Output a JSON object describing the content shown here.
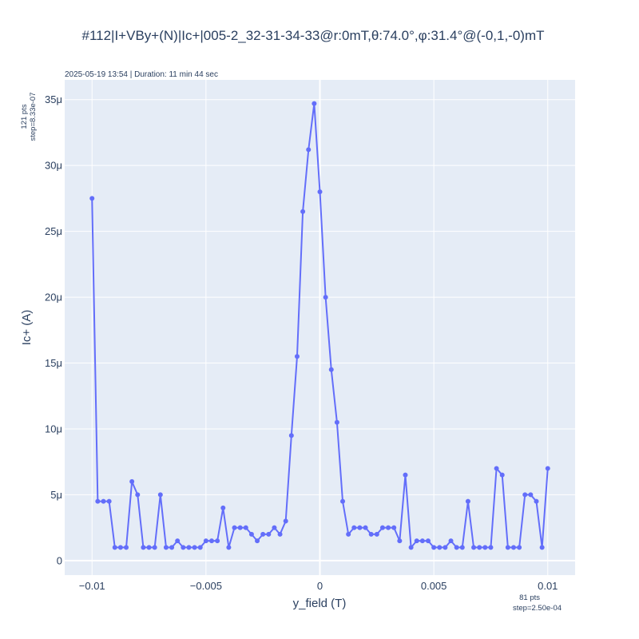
{
  "chart_data": {
    "type": "line",
    "title": "#112|I+VBy+(N)|Ic+|005-2_32-31-34-33@r:0mT,θ:74.0°,φ:31.4°@(-0,1,-0)mT",
    "subtitle": "2025-05-19 13:54 | Duration: 11 min 44 sec",
    "xlabel": "y_field (T)",
    "ylabel": "Ic+ (A)",
    "y_note": [
      "121 pts",
      "step=8.33e-07"
    ],
    "x_note": [
      "81 pts",
      "step=2.50e-04"
    ],
    "xlim": [
      -0.0112,
      0.0112
    ],
    "ylim": [
      -1.1e-06,
      3.65e-05
    ],
    "x_ticks": [
      -0.01,
      -0.005,
      0,
      0.005,
      0.01
    ],
    "x_tick_labels": [
      "−0.01",
      "−0.005",
      "0",
      "0.005",
      "0.01"
    ],
    "y_ticks": [
      0,
      5e-06,
      1e-05,
      1.5e-05,
      2e-05,
      2.5e-05,
      3e-05,
      3.5e-05
    ],
    "y_tick_labels": [
      "0",
      "5μ",
      "10μ",
      "15μ",
      "20μ",
      "25μ",
      "30μ",
      "35μ"
    ],
    "grid": true,
    "colors": {
      "line": "#636efa",
      "plot_bg": "#e5ecf6",
      "grid": "#ffffff"
    },
    "series": [
      {
        "x": [
          -0.01,
          -0.00975,
          -0.0095,
          -0.00925,
          -0.009,
          -0.00875,
          -0.0085,
          -0.00825,
          -0.008,
          -0.00775,
          -0.0075,
          -0.00725,
          -0.007,
          -0.00675,
          -0.0065,
          -0.00625,
          -0.006,
          -0.00575,
          -0.0055,
          -0.00525,
          -0.005,
          -0.00475,
          -0.0045,
          -0.00425,
          -0.004,
          -0.00375,
          -0.0035,
          -0.00325,
          -0.003,
          -0.00275,
          -0.0025,
          -0.00225,
          -0.002,
          -0.00175,
          -0.0015,
          -0.00125,
          -0.001,
          -0.00075,
          -0.0005,
          -0.00025,
          0,
          0.00025,
          0.0005,
          0.00075,
          0.001,
          0.00125,
          0.0015,
          0.00175,
          0.002,
          0.00225,
          0.0025,
          0.00275,
          0.003,
          0.00325,
          0.0035,
          0.00375,
          0.004,
          0.00425,
          0.0045,
          0.00475,
          0.005,
          0.00525,
          0.0055,
          0.00575,
          0.006,
          0.00625,
          0.0065,
          0.00675,
          0.007,
          0.00725,
          0.0075,
          0.00775,
          0.008,
          0.00825,
          0.0085,
          0.00875,
          0.009,
          0.00925,
          0.0095,
          0.00975,
          0.01
        ],
        "y": [
          2.75e-05,
          4.5e-06,
          4.5e-06,
          4.5e-06,
          1e-06,
          1e-06,
          1e-06,
          6e-06,
          5e-06,
          1e-06,
          1e-06,
          1e-06,
          5e-06,
          1e-06,
          1e-06,
          1.5e-06,
          1e-06,
          1e-06,
          1e-06,
          1e-06,
          1.5e-06,
          1.5e-06,
          1.5e-06,
          4e-06,
          1e-06,
          2.5e-06,
          2.5e-06,
          2.5e-06,
          2e-06,
          1.5e-06,
          2e-06,
          2e-06,
          2.5e-06,
          2e-06,
          3e-06,
          9.5e-06,
          1.55e-05,
          2.65e-05,
          3.12e-05,
          3.47e-05,
          2.8e-05,
          2e-05,
          1.45e-05,
          1.05e-05,
          4.5e-06,
          2e-06,
          2.5e-06,
          2.5e-06,
          2.5e-06,
          2e-06,
          2e-06,
          2.5e-06,
          2.5e-06,
          2.5e-06,
          1.5e-06,
          6.5e-06,
          1e-06,
          1.5e-06,
          1.5e-06,
          1.5e-06,
          1e-06,
          1e-06,
          1e-06,
          1.5e-06,
          1e-06,
          1e-06,
          4.5e-06,
          1e-06,
          1e-06,
          1e-06,
          1e-06,
          7e-06,
          6.5e-06,
          1e-06,
          1e-06,
          1e-06,
          5e-06,
          5e-06,
          4.5e-06,
          1e-06,
          7e-06
        ]
      }
    ]
  }
}
